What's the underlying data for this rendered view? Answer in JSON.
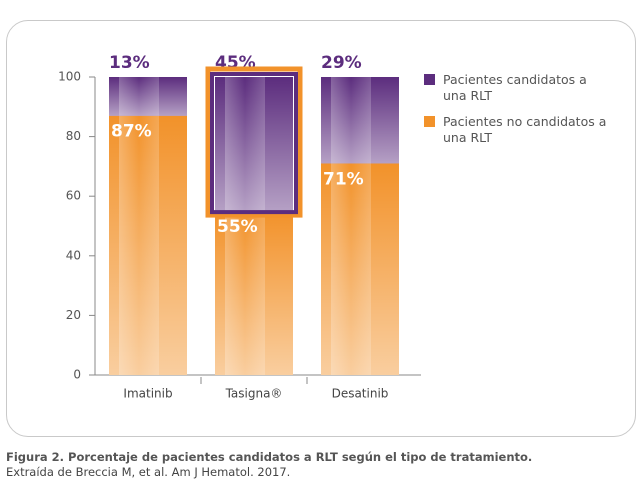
{
  "chart_data": {
    "type": "stacked-bar",
    "categories": [
      "Imatinib",
      "Tasigna®",
      "Desatinib"
    ],
    "series": [
      {
        "name": "Pacientes no candidatos a una RLT",
        "color": "#f2922a",
        "values": [
          87,
          55,
          71
        ],
        "value_labels": [
          "87%",
          "55%",
          "71%"
        ]
      },
      {
        "name": "Pacientes candidatos a una RLT",
        "color": "#5c2d7e",
        "values": [
          13,
          45,
          29
        ],
        "value_labels": [
          "13%",
          "45%",
          "29%"
        ]
      }
    ],
    "ylim": [
      0,
      100
    ],
    "yticks": [
      0,
      20,
      40,
      60,
      80,
      100
    ]
  },
  "caption": {
    "title": "Figura 2. Porcentaje de pacientes candidatos a RLT según el tipo de tratamiento.",
    "source": "Extraída de Breccia M, et al. Am J Hematol. 2017."
  }
}
